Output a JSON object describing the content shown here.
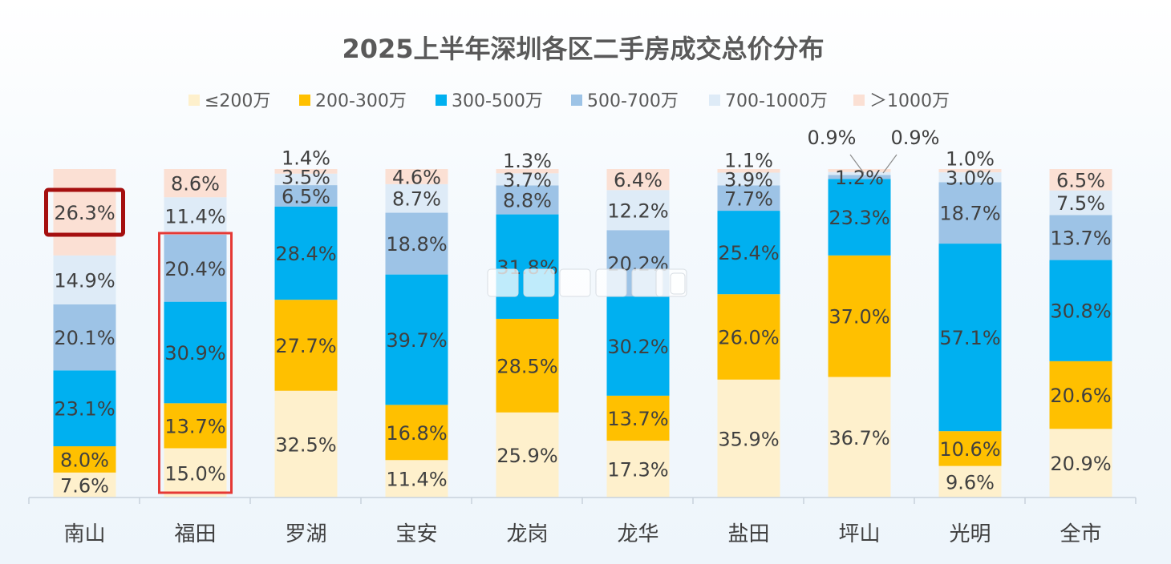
{
  "chart_data": {
    "type": "bar",
    "stacked": true,
    "percent": true,
    "title": "2025上半年深圳各区二手房成交总价分布",
    "legend_position": "top",
    "categories": [
      "南山",
      "福田",
      "罗湖",
      "宝安",
      "龙岗",
      "龙华",
      "盐田",
      "坪山",
      "光明",
      "全市"
    ],
    "series": [
      {
        "name": "≤200万",
        "color": "#fef0cc",
        "values": [
          7.6,
          15.0,
          32.5,
          11.4,
          25.9,
          17.3,
          35.9,
          36.7,
          9.6,
          20.9
        ]
      },
      {
        "name": "200-300万",
        "color": "#ffc000",
        "values": [
          8.0,
          13.7,
          27.7,
          16.8,
          28.5,
          13.7,
          26.0,
          37.0,
          10.6,
          20.6
        ]
      },
      {
        "name": "300-500万",
        "color": "#00b0f0",
        "values": [
          23.1,
          30.9,
          28.4,
          39.7,
          31.8,
          30.2,
          25.4,
          23.3,
          57.1,
          30.8
        ]
      },
      {
        "name": "500-700万",
        "color": "#9dc3e6",
        "values": [
          20.1,
          20.4,
          6.5,
          18.8,
          8.8,
          20.2,
          7.7,
          1.2,
          18.7,
          13.7
        ]
      },
      {
        "name": "700-1000万",
        "color": "#deebf7",
        "values": [
          14.9,
          11.4,
          3.5,
          8.7,
          3.7,
          12.2,
          3.9,
          0.9,
          3.0,
          7.5
        ]
      },
      {
        "name": "＞1000万",
        "color": "#fbe0d4",
        "values": [
          26.3,
          8.6,
          1.4,
          4.6,
          1.3,
          6.4,
          1.1,
          0.9,
          1.0,
          6.5
        ]
      }
    ],
    "highlights": {
      "dark_red_box": {
        "category": "南山",
        "series": "＞1000万",
        "color": "#a50f0f"
      },
      "red_box": {
        "category": "福田",
        "series": [
          "≤200万",
          "200-300万",
          "300-500万",
          "500-700万"
        ],
        "color": "#e53935"
      }
    },
    "overlay_boxes": 7
  }
}
